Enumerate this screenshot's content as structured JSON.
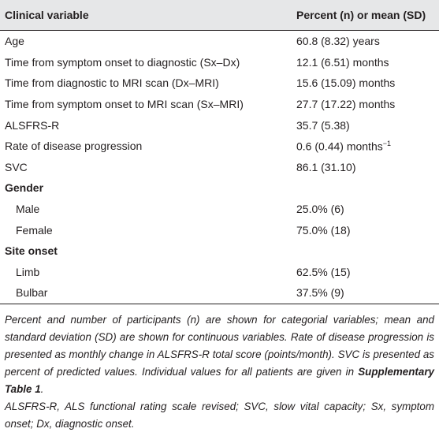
{
  "table": {
    "header": [
      "Clinical variable",
      "Percent (n) or mean (SD)"
    ],
    "rows": [
      {
        "label": "Age",
        "value": "60.8 (8.32) years"
      },
      {
        "label": "Time from symptom onset to diagnostic (Sx–Dx)",
        "value": "12.1 (6.51) months"
      },
      {
        "label": "Time from diagnostic to MRI scan (Dx–MRI)",
        "value": "15.6 (15.09) months"
      },
      {
        "label": "Time from symptom onset to MRI scan (Sx–MRI)",
        "value": "27.7 (17.22) months"
      },
      {
        "label": "ALSFRS-R",
        "value": "35.7 (5.38)"
      },
      {
        "label": "Rate of disease progression",
        "value": "0.6 (0.44) months",
        "sup": "−1"
      },
      {
        "label": "SVC",
        "value": "86.1 (31.10)"
      },
      {
        "section": "Gender"
      },
      {
        "label": "Male",
        "value": "25.0% (6)",
        "indent": true
      },
      {
        "label": "Female",
        "value": "75.0% (18)",
        "indent": true
      },
      {
        "section": "Site onset"
      },
      {
        "label": "Limb",
        "value": "62.5% (15)",
        "indent": true
      },
      {
        "label": "Bulbar",
        "value": "37.5% (9)",
        "indent": true
      }
    ]
  },
  "footnote": {
    "text": "Percent and number of participants (n) are shown for categorial variables; mean and standard deviation (SD) are shown for continuous variables. Rate of disease progression is presented as monthly change in ALSFRS-R total score (points/month). SVC is presented as percent of predicted values. Individual values for all patients are given in ",
    "bold": "Supplementary Table 1",
    "end": ".",
    "abbreviations": "ALSFRS-R, ALS functional rating scale revised; SVC, slow vital capacity; Sx, symptom onset; Dx, diagnostic onset."
  }
}
